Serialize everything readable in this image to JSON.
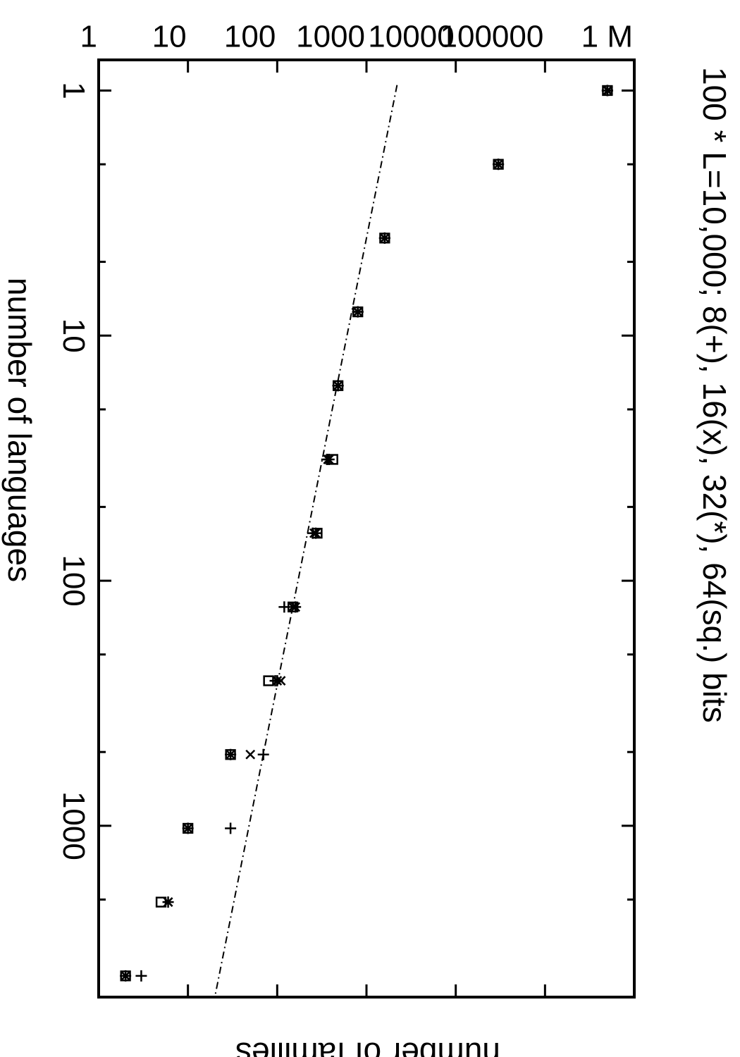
{
  "chart_data": {
    "type": "scatter",
    "title": "100 * L=10,000; 8(+), 16(x), 32(*), 64(sq.) bits",
    "xlabel": "number of languages",
    "ylabel": "number of families",
    "xscale": "log",
    "yscale": "log",
    "xlim": [
      0.75,
      5000
    ],
    "ylim": [
      1,
      1000000
    ],
    "x_ticks": [
      {
        "value": 1,
        "label": "1"
      },
      {
        "value": 10,
        "label": "10"
      },
      {
        "value": 100,
        "label": "100"
      },
      {
        "value": 1000,
        "label": "1000"
      }
    ],
    "y_ticks": [
      {
        "value": 1,
        "label": "1"
      },
      {
        "value": 10,
        "label": "10"
      },
      {
        "value": 100,
        "label": "100"
      },
      {
        "value": 1000,
        "label": "1000"
      },
      {
        "value": 10000,
        "label": "10000"
      },
      {
        "value": 100000,
        "label": "100000"
      },
      {
        "value": 1000000,
        "label": "1 M"
      }
    ],
    "grid": false,
    "legend": "none",
    "series": [
      {
        "marker": "plus",
        "points": [
          [
            1,
            500000
          ],
          [
            2,
            30000
          ],
          [
            4,
            1600
          ],
          [
            8,
            800
          ],
          [
            16,
            480
          ],
          [
            32,
            360
          ],
          [
            64,
            250
          ],
          [
            128,
            120
          ],
          [
            256,
            95
          ],
          [
            512,
            70
          ],
          [
            1024,
            30
          ],
          [
            4096,
            3
          ]
        ]
      },
      {
        "marker": "cross",
        "points": [
          [
            1,
            510000
          ],
          [
            2,
            30000
          ],
          [
            4,
            1600
          ],
          [
            8,
            800
          ],
          [
            16,
            480
          ],
          [
            32,
            370
          ],
          [
            64,
            260
          ],
          [
            128,
            150
          ],
          [
            256,
            110
          ],
          [
            512,
            50
          ],
          [
            1024,
            10
          ],
          [
            2048,
            6
          ],
          [
            4096,
            2
          ]
        ]
      },
      {
        "marker": "star",
        "points": [
          [
            1,
            500000
          ],
          [
            2,
            30000
          ],
          [
            4,
            1600
          ],
          [
            8,
            800
          ],
          [
            16,
            480
          ],
          [
            32,
            380
          ],
          [
            64,
            270
          ],
          [
            128,
            160
          ],
          [
            256,
            100
          ],
          [
            512,
            30
          ],
          [
            1024,
            10
          ],
          [
            2048,
            6
          ],
          [
            4096,
            2
          ]
        ]
      },
      {
        "marker": "square",
        "points": [
          [
            1,
            500000
          ],
          [
            2,
            30000
          ],
          [
            4,
            1600
          ],
          [
            8,
            800
          ],
          [
            16,
            480
          ],
          [
            32,
            420
          ],
          [
            64,
            280
          ],
          [
            128,
            150
          ],
          [
            256,
            80
          ],
          [
            512,
            30
          ],
          [
            1024,
            10
          ],
          [
            2048,
            5
          ],
          [
            4096,
            2
          ]
        ]
      }
    ],
    "fit_line": {
      "style": "dash-dot",
      "from": [
        0.95,
        2200
      ],
      "to": [
        5000,
        20
      ]
    }
  }
}
